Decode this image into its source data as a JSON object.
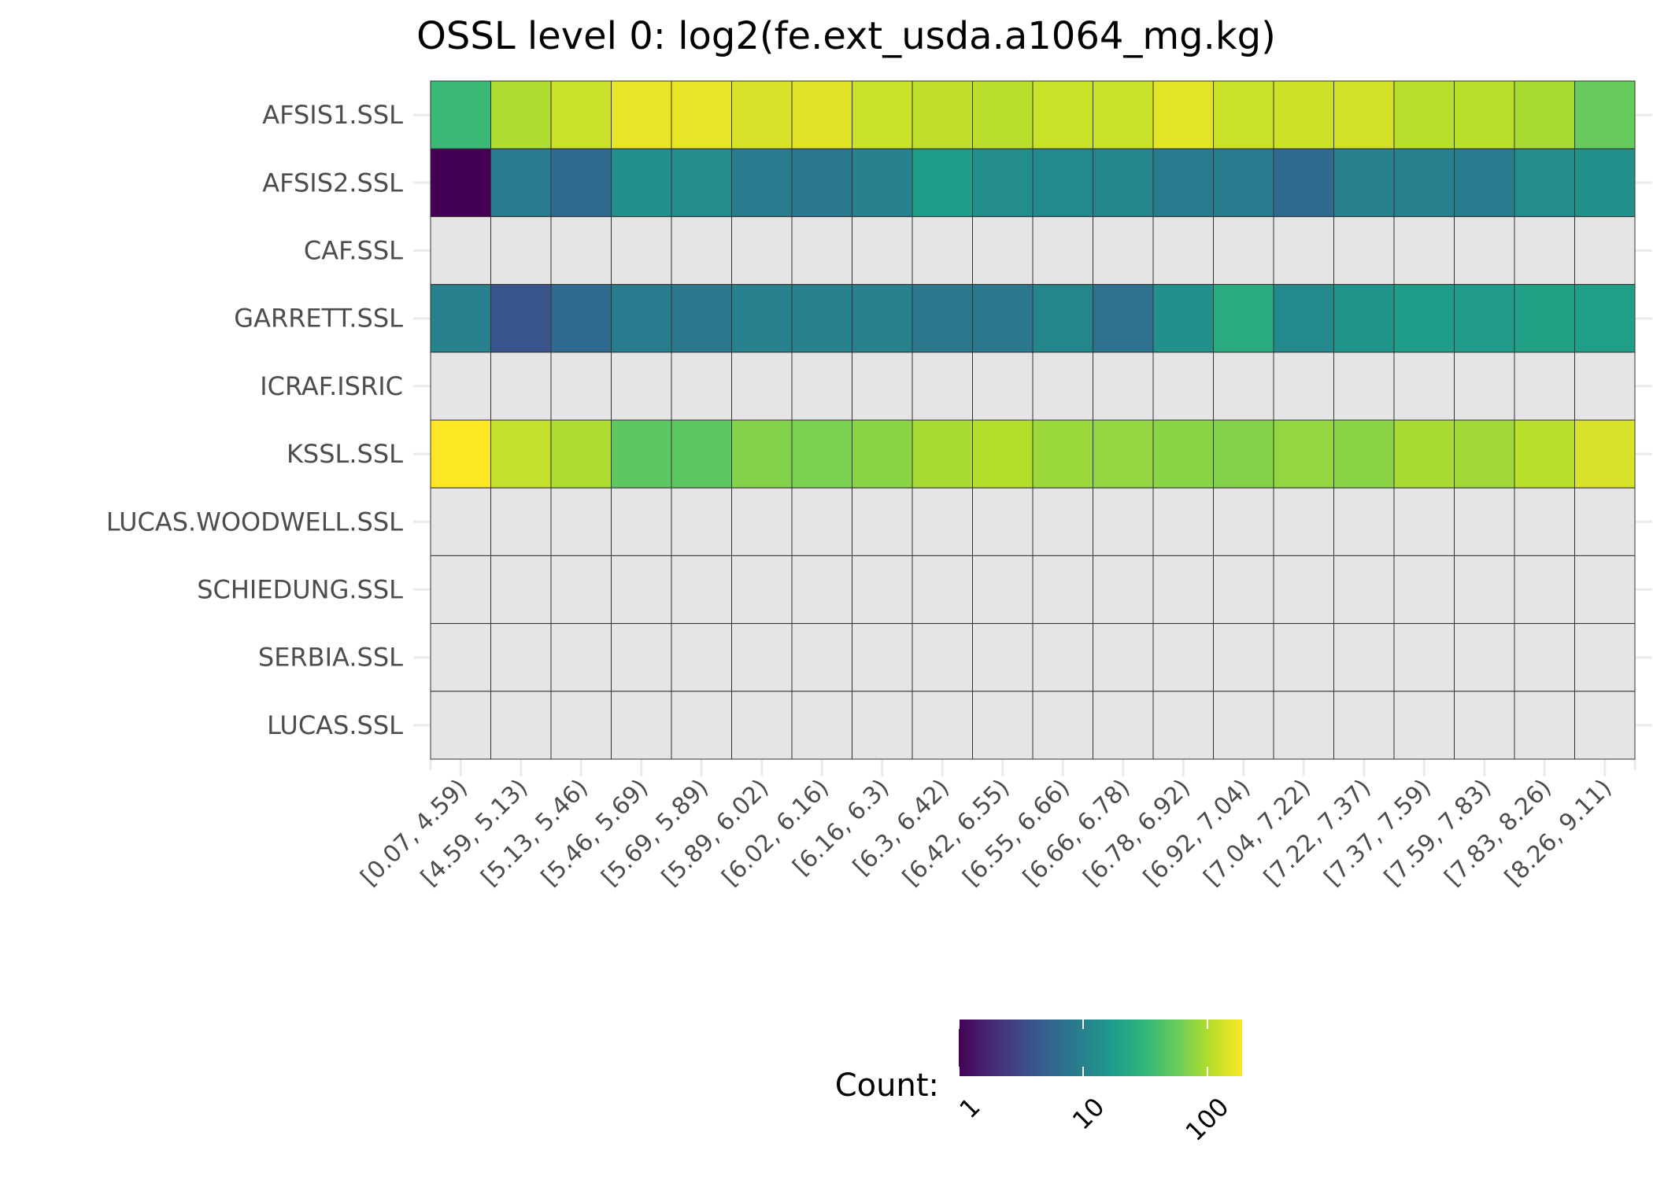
{
  "chart_data": {
    "type": "heatmap",
    "title": "OSSL level 0: log2(fe.ext_usda.a1064_mg.kg)",
    "x_categories": [
      "[0.07, 4.59)",
      "[4.59, 5.13)",
      "[5.13, 5.46)",
      "[5.46, 5.69)",
      "[5.69, 5.89)",
      "[5.89, 6.02)",
      "[6.02, 6.16)",
      "[6.16, 6.3)",
      "[6.3, 6.42)",
      "[6.42, 6.55)",
      "[6.55, 6.66)",
      "[6.66, 6.78)",
      "[6.78, 6.92)",
      "[6.92, 7.04)",
      "[7.04, 7.22)",
      "[7.22, 7.37)",
      "[7.37, 7.59)",
      "[7.59, 7.83)",
      "[7.83, 8.26)",
      "[8.26, 9.11)"
    ],
    "y_categories": [
      "AFSIS1.SSL",
      "AFSIS2.SSL",
      "CAF.SSL",
      "GARRETT.SSL",
      "ICRAF.ISRIC",
      "KSSL.SSL",
      "LUCAS.WOODWELL.SSL",
      "SCHIEDUNG.SSL",
      "SERBIA.SSL",
      "LUCAS.SSL"
    ],
    "values": [
      [
        35,
        100,
        125,
        160,
        160,
        140,
        150,
        125,
        115,
        110,
        125,
        125,
        155,
        125,
        130,
        135,
        110,
        110,
        95,
        55
      ],
      [
        1,
        9,
        6,
        14,
        13,
        9,
        8,
        10,
        18,
        13,
        12,
        11,
        9,
        9,
        6,
        10,
        10,
        9,
        13,
        14
      ],
      [
        null,
        null,
        null,
        null,
        null,
        null,
        null,
        null,
        null,
        null,
        null,
        null,
        null,
        null,
        null,
        null,
        null,
        null,
        null,
        null
      ],
      [
        10,
        4,
        6,
        9,
        8,
        10,
        10,
        10,
        8,
        8,
        11,
        7,
        14,
        25,
        12,
        15,
        18,
        17,
        20,
        19
      ],
      [
        null,
        null,
        null,
        null,
        null,
        null,
        null,
        null,
        null,
        null,
        null,
        null,
        null,
        null,
        null,
        null,
        null,
        null,
        null,
        null
      ],
      [
        190,
        120,
        100,
        50,
        50,
        70,
        65,
        75,
        95,
        105,
        85,
        80,
        75,
        70,
        80,
        75,
        95,
        90,
        110,
        140
      ],
      [
        null,
        null,
        null,
        null,
        null,
        null,
        null,
        null,
        null,
        null,
        null,
        null,
        null,
        null,
        null,
        null,
        null,
        null,
        null,
        null
      ],
      [
        null,
        null,
        null,
        null,
        null,
        null,
        null,
        null,
        null,
        null,
        null,
        null,
        null,
        null,
        null,
        null,
        null,
        null,
        null,
        null
      ],
      [
        null,
        null,
        null,
        null,
        null,
        null,
        null,
        null,
        null,
        null,
        null,
        null,
        null,
        null,
        null,
        null,
        null,
        null,
        null,
        null
      ],
      [
        null,
        null,
        null,
        null,
        null,
        null,
        null,
        null,
        null,
        null,
        null,
        null,
        null,
        null,
        null,
        null,
        null,
        null,
        null,
        null
      ]
    ],
    "color_scale": "viridis",
    "scale": "log10",
    "missing_color": "#e5e5e5",
    "legend": {
      "title": "Count:",
      "ticks": [
        1,
        10,
        100
      ],
      "tick_labels": [
        "1",
        "10",
        "100"
      ],
      "range": [
        1,
        190
      ],
      "placement": "bottom"
    }
  }
}
